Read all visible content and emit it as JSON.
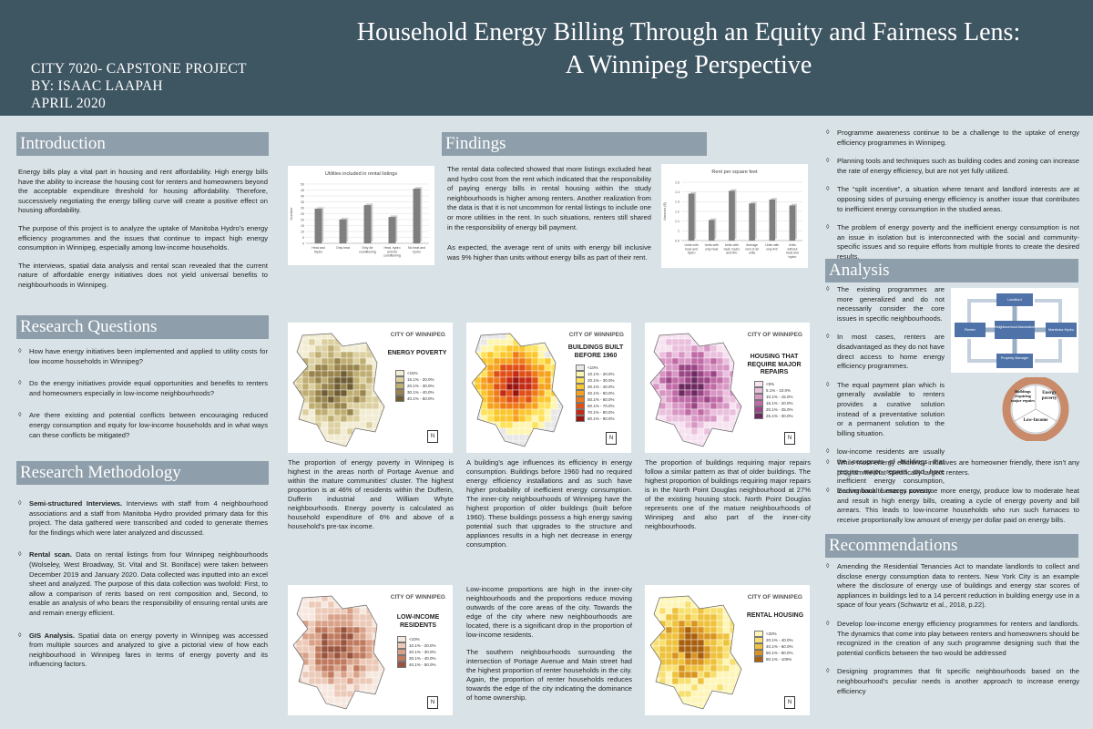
{
  "header": {
    "course": "CITY 7020- CAPSTONE PROJECT",
    "author": "BY: ISAAC LAAPAH",
    "date": "APRIL 2020",
    "title_line1": "Household Energy Billing Through an Equity and Fairness Lens:",
    "title_line2": "A Winnipeg Perspective"
  },
  "intro": {
    "heading": "Introduction",
    "p1": "Energy bills play a vital part in housing and rent affordability. High energy bills have the ability to increase the housing cost for renters and homeowners beyond the acceptable expenditure threshold for housing affordability. Therefore, successively negotiating the energy billing curve will create a positive effect on housing affordability.",
    "p2": "The purpose of this project is to analyze the uptake of Manitoba Hydro’s energy efficiency programmes and the issues that continue to impact high energy consumption in Winnipeg, especially among low-income households.",
    "p3": "The interviews, spatial data analysis and rental scan revealed that the current nature of affordable energy initiatives does not yield universal benefits to neighbourhoods in Winnipeg."
  },
  "rq": {
    "heading": "Research Questions",
    "items": [
      "How have energy initiatives been implemented and applied to utility costs for low income households in Winnipeg?",
      "Do the energy initiatives provide equal opportunities and benefits to renters and homeowners especially in low-income neighbourhoods?",
      "Are there existing and potential conflicts between encouraging reduced energy consumption and equity for low-income households and in what ways can these conflicts be mitigated?"
    ]
  },
  "rm": {
    "heading": "Research Methodology",
    "items": [
      {
        "lead": "Semi-structured Interviews.",
        "text": " Interviews with staff from 4 neighbourhood associations and a staff from Manitoba Hydro provided primary data for this project. The data gathered were transcribed and coded to generate themes for the findings which were later analyzed and discussed."
      },
      {
        "lead": "Rental scan.",
        "text": " Data on rental listings from four Winnipeg neighbourhoods (Wolseley, West Broadway, St. Vital and St. Boniface) were taken between December 2019 and January 2020. Data collected was inputted into an excel sheet and analyzed. The purpose of this data collection was twofold: First, to allow a comparison of rents based on rent composition and, Second, to enable an analysis of who bears the responsibility of ensuring rental units are and remain energy efficient."
      },
      {
        "lead": "GIS Analysis.",
        "text": " Spatial data on energy poverty in Winnipeg was accessed from multiple sources and analyzed to give a pictorial view of how each neighbourhood in Winnipeg fares in terms of energy poverty and its influencing factors."
      }
    ]
  },
  "findings": {
    "heading": "Findings",
    "p1": "The rental data collected showed that more listings excluded heat and hydro cost from the rent which indicated that the responsibility of paying energy bills in rental housing within the study neighbourhoods is higher among renters. Another realization from the data is that it is not uncommon for rental listings to include one or more utilities in the rent. In such situations, renters still shared in the responsibility of energy bill payment.",
    "p2": "As expected, the average rent of units with energy bill inclusive was 9% higher than units without energy bills as part of their rent.",
    "map_ep": "The proportion of energy poverty in Winnipeg is highest in the areas north of Portage Avenue and within the mature communities’ cluster. The highest proportion is at 46% of residents within the Dufferin, Dufferin industrial and William Whyte neighbourhoods. Energy poverty is calculated as household expenditure of 6% and above of a household’s pre-tax income.",
    "map_bb": "A building’s age influences its efficiency in energy consumption. Buildings before 1960 had no required energy efficiency installations and as such have higher probability of inefficient energy consumption. The inner-city neighbourhoods of Winnipeg have the highest proportion of older buildings (built before 1960). These buildings possess a high energy saving potential such that upgrades to the structure and appliances results in a high net decrease in energy consumption.",
    "map_mr": "The proportion of buildings requiring major repairs follow a similar pattern as that of older buildings. The highest proportion of buildings requiring major repairs is in the North Point Douglas neighbourhood at 27% of the existing housing stock. North Point Douglas represents one of the mature neighbourhoods of Winnipeg and also part of the inner-city neighbourhoods.",
    "map_li_p1": "Low-income proportions are high in the inner-city neighbourhoods and the proportions reduce moving outwards of the core areas of the city. Towards the edge of the city where new neighbourhoods are located, there is a significant drop in the proportion of low-income residents.",
    "map_li_p2": "The southern neighbourhoods surrounding the intersection of Portage Avenue and Main street had the highest proportion of renter households in the city. Again, the proportion of renter households reduces towards the edge of the city indicating the dominance of home ownership."
  },
  "right": {
    "items": [
      "Programme awareness continue to be a challenge to the uptake of energy efficiency programmes in Winnipeg.",
      "Planning tools and techniques such as building codes and zoning can increase the rate of energy efficiency, but are not yet fully utilized.",
      "The “split incentive”, a situation where tenant and landlord interests are at opposing sides of pursuing energy efficiency is another issue that contributes to inefficient energy consumption in the studied areas.",
      "The problem of energy poverty and the inefficient energy consumption is not an issue in isolation but is interconnected with the social and community-specific issues and so require efforts from multiple fronts to create the desired results."
    ]
  },
  "analysis": {
    "heading": "Analysis",
    "narrow": [
      "The existing programmes are more generalized and do not necessarily consider the core issues in specific neighbourhoods.",
      "In most cases, renters are disadvantaged as they do not have direct access to home energy efficiency programmes.",
      "The equal payment plan which is generally available to renters provides a curative solution instead of a preventative solution or a permanent solution to the billing situation.",
      "low-income residents are usually the occupants of buildings that require major repairs and have inefficient energy consumption, leading back to energy poverty."
    ],
    "wide": [
      "While most energy efficiency initiatives are homeowner friendly, there isn’t any programme that specifically targets renters.",
      "Conventional furnaces consume more energy, produce low to moderate heat and result in high energy bills, creating a cycle of energy poverty and bill arrears. This leads to low-income households who run such furnaces to receive proportionally low amount of energy per dollar paid on energy bills."
    ],
    "diagram1": {
      "box_landlord": "Landlord",
      "box_renter": "Renter",
      "box_assoc": "Neighbourhood Association",
      "box_hydro": "Manitoba Hydro",
      "box_prop": "Property Manager"
    },
    "diagram2": {
      "c1": "Buildings requiring major repairs",
      "c2": "Energy poverty",
      "c3": "Low-Income"
    }
  },
  "rec": {
    "heading": "Recommendations",
    "items": [
      "Amending the Residential Tenancies Act to mandate landlords to collect and disclose energy consumption data to renters. New York City is an example where the disclosure of energy use of buildings and energy star scores of appliances in buildings led to a 14 percent reduction in building energy use in a space of four years (Schwartz et al., 2018, p.22).",
      "Develop low-income energy efficiency programmes for renters and landlords. The dynamics that come into play between renters and homeowners should be recognized in the creation of any such programme designing such that the potential conflicts between the two would be addressed",
      "Designing programmes that fit specific neighbourhoods based on the neighbourhood’s peculiar needs is another approach to increase energy efficiency"
    ]
  },
  "maps": {
    "city_label": "CITY OF WINNIPEG",
    "ep": {
      "title": "ENERGY POVERTY",
      "legend": [
        "<15%",
        "15.1% - 20.0%",
        "20.1% - 30.0%",
        "30.1% - 40.0%",
        "40.1% - 50.0%"
      ],
      "colors": [
        "#f2ecd2",
        "#dcd0a0",
        "#bfae72",
        "#98844c",
        "#6e5d34"
      ]
    },
    "bb": {
      "title": "BUILDINGS BUILT BEFORE 1960",
      "legend": [
        "<10%",
        "10.1% - 20.0%",
        "20.1% - 30.0%",
        "30.1% - 40.0%",
        "40.1% - 50.0%",
        "50.1% - 60.0%",
        "60.1% - 70.0%",
        "70.1% - 80.0%",
        "80.1% - 90.0%"
      ],
      "colors": [
        "#e8e8e8",
        "#fef6b0",
        "#fde25a",
        "#fbc72e",
        "#f6a21e",
        "#ee7a18",
        "#e05016",
        "#c42a14",
        "#9a1410"
      ]
    },
    "mr": {
      "title": "HOUSING THAT REQUIRE MAJOR REPAIRS",
      "legend": [
        "<5%",
        "5.1% - 10.0%",
        "10.1% - 15.0%",
        "15.1% - 20.0%",
        "20.1% - 25.0%",
        "25.1% - 30.0%"
      ],
      "colors": [
        "#f6e2f0",
        "#eac0dd",
        "#d896c4",
        "#c06aa6",
        "#9a4585",
        "#6d2a60"
      ]
    },
    "li": {
      "title": "LOW-INCOME RESIDENTS",
      "legend": [
        "<10%",
        "10.1% - 20.0%",
        "20.1% - 30.0%",
        "30.1% - 40.0%",
        "40.1% - 50.0%"
      ],
      "colors": [
        "#f7e8df",
        "#eccab8",
        "#d9a288",
        "#c07a5e",
        "#98543e"
      ]
    },
    "rh": {
      "title": "RENTAL HOUSING",
      "legend": [
        "<20%",
        "20.1% - 40.0%",
        "40.1% - 60.0%",
        "60.1% - 80.0%",
        "80.1% - 100%"
      ],
      "colors": [
        "#fdf6b8",
        "#f8e070",
        "#eec23c",
        "#d89420",
        "#a9600e"
      ]
    }
  },
  "chart_data": [
    {
      "type": "bar",
      "title": "Utilities included in rental listings",
      "categories": [
        "Heat and Hydro",
        "Only heat",
        "Only Air conditioning",
        "Heat, hydro and Air conditioning",
        "No heat and hydro"
      ],
      "values": [
        29,
        20,
        32,
        22,
        46
      ],
      "ylabel": "Number",
      "ylim": [
        0,
        50
      ],
      "yticks": [
        "0",
        "5",
        "10",
        "15",
        "20",
        "25",
        "30",
        "35",
        "40",
        "45",
        "50"
      ],
      "color": "#7f7f7f"
    },
    {
      "type": "bar",
      "title": "Rent per square feet",
      "categories": [
        "Units with heat and hydro",
        "Units with only heat",
        "Units with heat, hydro and A/C",
        "Average rent of all units",
        "Units with only A/C",
        "Units without heat and hydro"
      ],
      "values": [
        1.38,
        1.11,
        1.41,
        1.28,
        1.32,
        1.26
      ],
      "ylabel": "Amount ($)",
      "ylim": [
        0.9,
        1.5
      ],
      "yticks": [
        "0.9",
        "1",
        "1.1",
        "1.2",
        "1.3",
        "1.4",
        "1.5"
      ],
      "color": "#7f7f7f"
    }
  ]
}
